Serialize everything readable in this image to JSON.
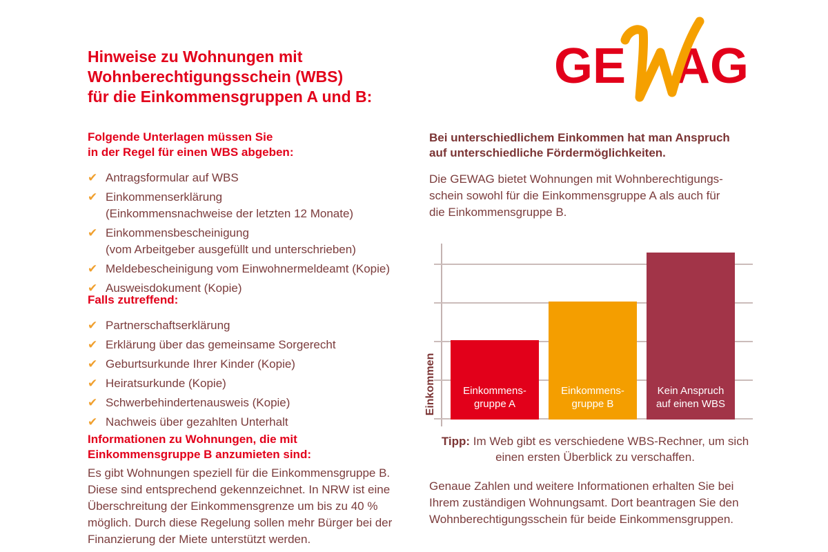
{
  "colors": {
    "brand_red": "#e2001a",
    "accent_orange": "#f49e00",
    "dark_maroon_bar": "#a23448",
    "text_maroon": "#7b3c3c",
    "grid_gray": "#cbbcba"
  },
  "icons": {
    "check_glyph": "✔"
  },
  "left": {
    "title": "Hinweise zu Wohnungen mit\nWohnberechtigungsschein (WBS)\nfür die Einkommensgruppen A und B:",
    "section1": {
      "heading": "Folgende Unterlagen müssen Sie\nin der Regel für einen WBS abgeben:",
      "items": [
        "Antragsformular auf WBS",
        "Einkommenserklärung\n(Einkommensnachweise der letzten 12 Monate)",
        "Einkommensbescheinigung\n(vom Arbeitgeber ausgefüllt und unterschrieben)",
        "Meldebescheinigung vom Einwohnermeldeamt (Kopie)",
        "Ausweisdokument (Kopie)"
      ]
    },
    "section2": {
      "heading": "Falls zutreffend:",
      "items": [
        "Partnerschaftserklärung",
        "Erklärung über das gemeinsame Sorgerecht",
        "Geburtsurkunde Ihrer Kinder (Kopie)",
        "Heiratsurkunde (Kopie)",
        "Schwerbehindertenausweis (Kopie)",
        "Nachweis über gezahlten Unterhalt"
      ]
    },
    "section3": {
      "heading": "Informationen zu Wohnungen, die mit\nEinkommensgruppe B anzumieten sind:",
      "body": "Es gibt Wohnungen speziell für die Einkommensgruppe B.\nDiese sind entsprechend gekennzeichnet. In NRW ist eine\nÜberschreitung der Einkommensgrenze um bis zu 40 %\nmöglich. Durch diese Regelung sollen mehr Bürger bei der\nFinanzierung der Miete unterstützt werden."
    }
  },
  "right": {
    "logo": {
      "part1": "GE",
      "w": "W",
      "part2": "AG"
    },
    "heading": "Bei unterschiedlichem Einkommen hat man Anspruch\nauf unterschiedliche Fördermöglichkeiten.",
    "intro": "Die GEWAG bietet Wohnungen mit Wohnberechtigungs-\nschein sowohl für die Einkommensgruppe A als auch für\ndie Einkommensgruppe B.",
    "tip_label": "Tipp:",
    "tip_text": " Im Web gibt es verschiedene WBS-Rechner, um sich\neinen ersten Überblick zu verschaffen.",
    "outro": "Genaue Zahlen und weitere Informationen erhalten Sie bei\nIhrem zuständigen Wohnungsamt. Dort beantragen Sie den\nWohnberechtigungsschein für beide Einkommensgruppen."
  },
  "chart_data": {
    "type": "bar",
    "title": "",
    "xlabel": "",
    "ylabel": "Einkommen",
    "categories": [
      "Einkommens-\ngruppe A",
      "Einkommens-\ngruppe B",
      "Kein Anspruch\nauf einen WBS"
    ],
    "values": [
      45,
      67,
      95
    ],
    "ylim": [
      0,
      100
    ],
    "gridline_values": [
      0,
      22,
      44,
      66,
      88
    ],
    "bar_colors": [
      "#e2001a",
      "#f49e00",
      "#a23448"
    ],
    "legend": "none",
    "grid": "horizontal"
  }
}
